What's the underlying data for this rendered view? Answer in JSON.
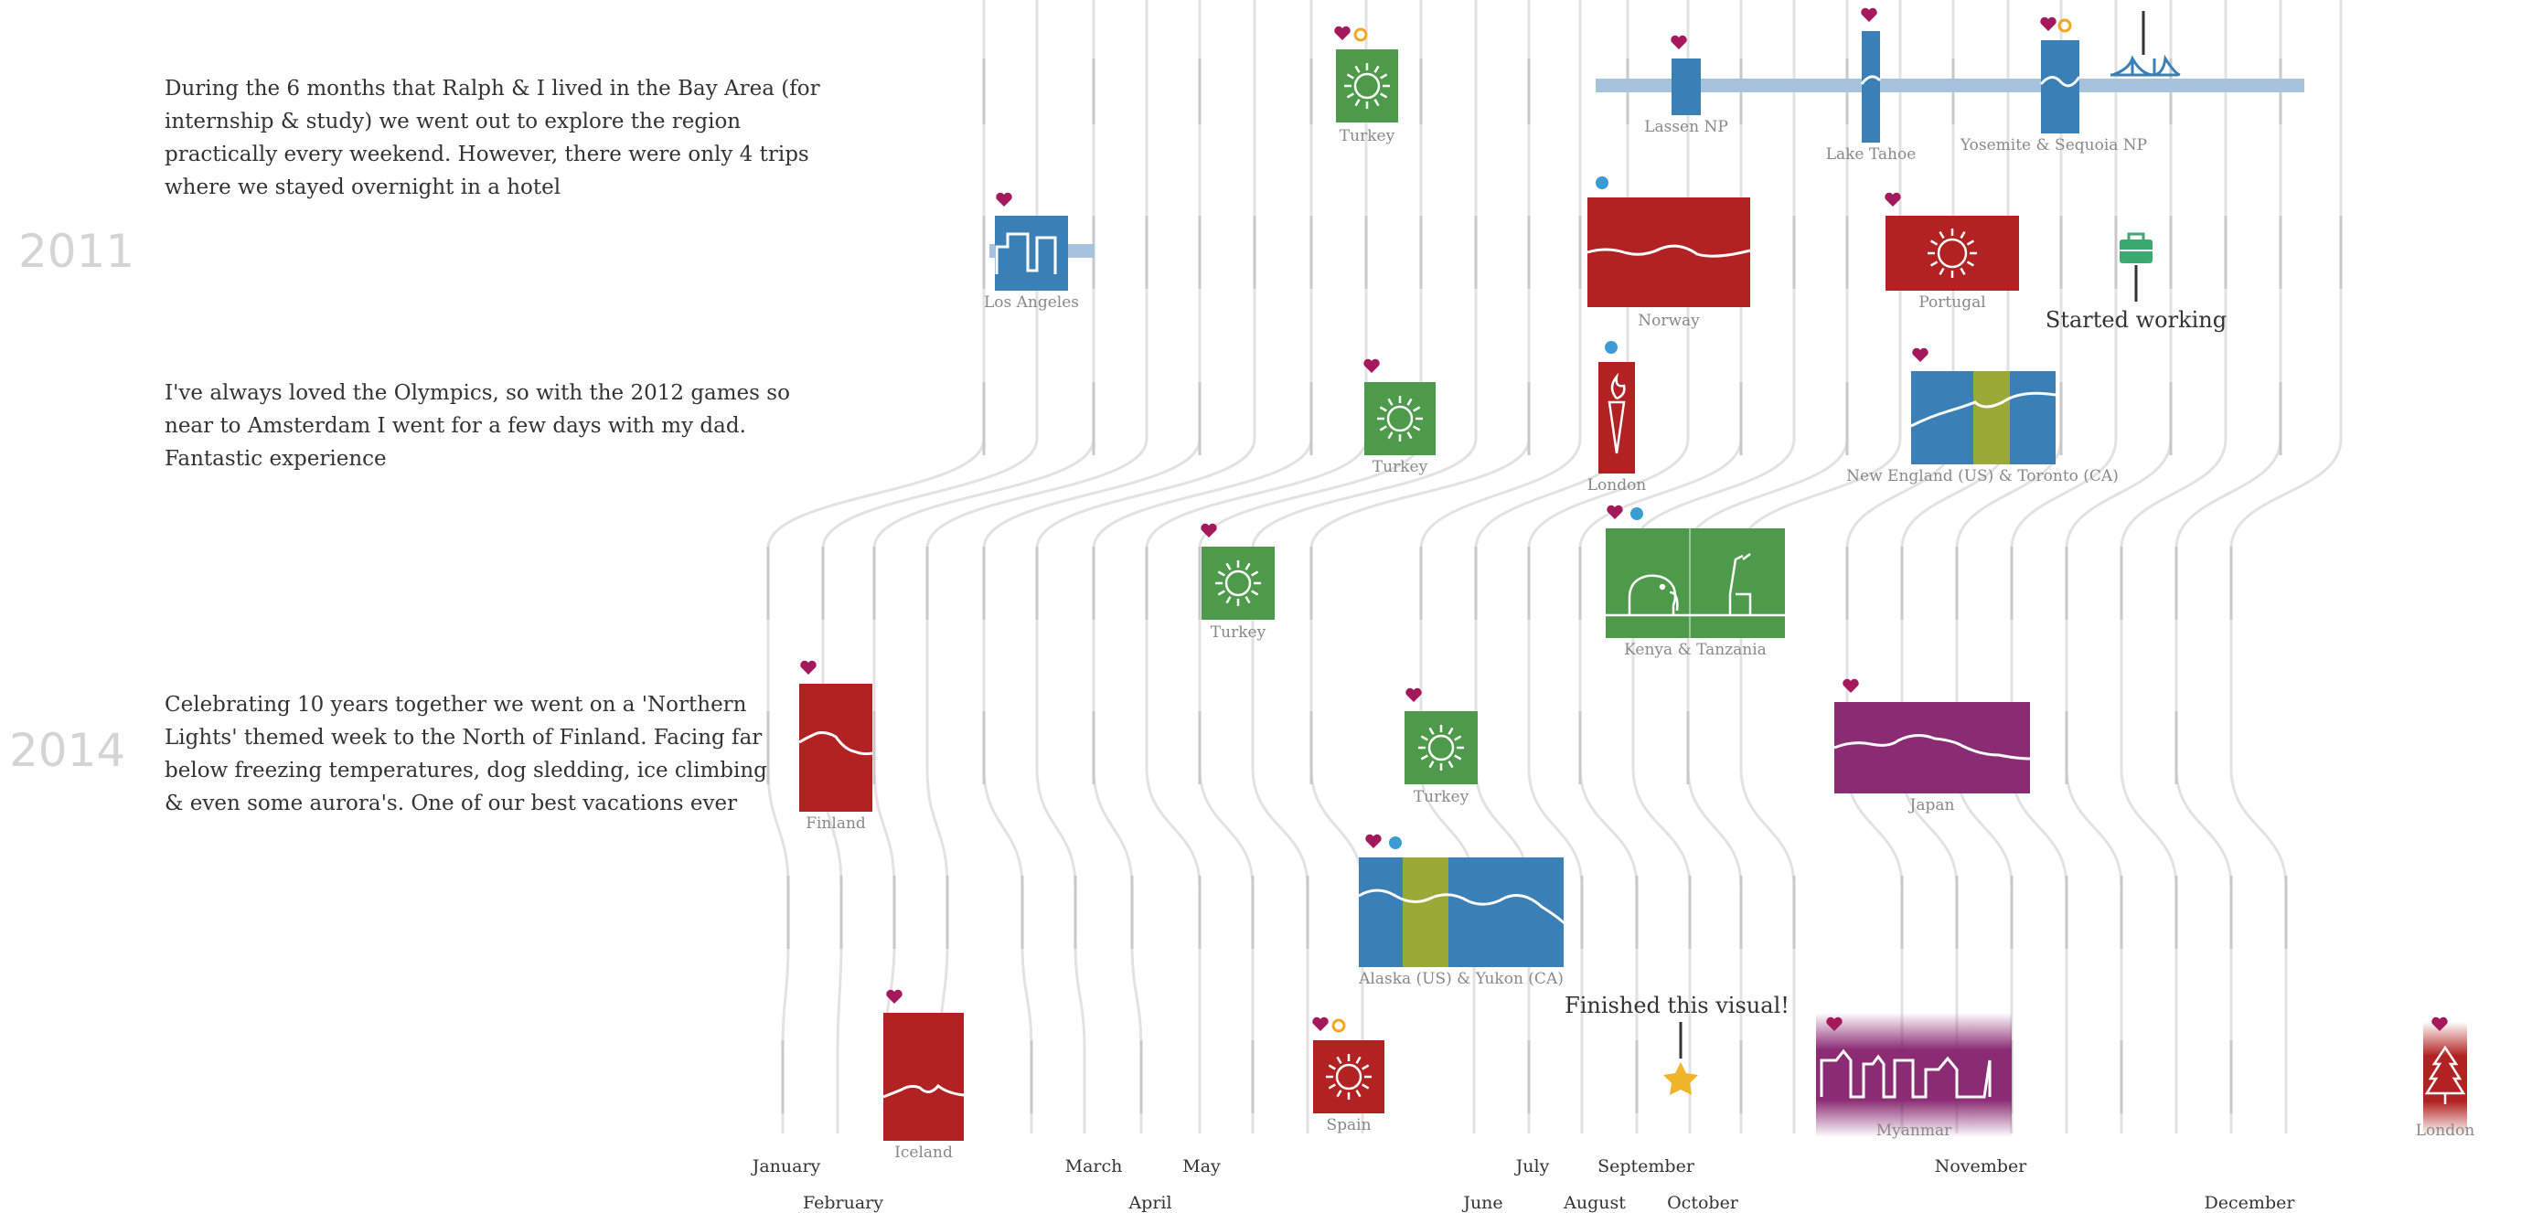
{
  "years": [
    "2011",
    "2014"
  ],
  "notes": [
    [
      "During the 6 months that Ralph & I lived in the Bay Area (for",
      "internship & study) we went out to explore the region",
      "practically every weekend. However, there were only 4 trips",
      "where we stayed overnight in a hotel"
    ],
    [
      "I've always loved the Olympics, so with the 2012 games so",
      "near to Amsterdam I went for a few days with my dad.",
      "Fantastic experience"
    ],
    [
      "Celebrating 10 years together we went on a 'Northern",
      "Lights' themed week to the North of Finland. Facing far",
      "below freezing temperatures, dog sledding, ice climbing",
      "& even some aurora's. One of our best vacations ever"
    ]
  ],
  "months_top": [
    "January",
    "March",
    "May",
    "July",
    "September",
    "November"
  ],
  "months_bottom": [
    "February",
    "April",
    "June",
    "August",
    "October",
    "December"
  ],
  "trips": {
    "turkey_1": "Turkey",
    "lassen": "Lassen NP",
    "tahoe": "Lake Tahoe",
    "yosemite": "Yosemite & Sequoia NP",
    "los_angeles": "Los Angeles",
    "norway": "Norway",
    "portugal": "Portugal",
    "turkey_2": "Turkey",
    "london_1": "London",
    "new_england": "New England (US) & Toronto (CA)",
    "turkey_3": "Turkey",
    "kenya": "Kenya & Tanzania",
    "finland": "Finland",
    "turkey_4": "Turkey",
    "japan": "Japan",
    "alaska": "Alaska (US) & Yukon (CA)",
    "iceland": "Iceland",
    "spain": "Spain",
    "myanmar": "Myanmar",
    "london_2": "London"
  },
  "callouts": {
    "started_working": "Started working",
    "finished_visual": "Finished this visual!"
  },
  "colors": {
    "heart": "#a3195b",
    "friend_dot": "#3a9bd5",
    "family_ring": "#f5a623",
    "sun_green": "#4c9a4a",
    "cold_red": "#b22222",
    "bay_blue": "#3a7fb5",
    "bay_band": "#a6c3dd",
    "japan_purple": "#8b2b74",
    "olive": "#9aaa36",
    "star": "#f0b429",
    "lines": "#e2e2e2",
    "month_tick": "#c8c8c8",
    "suitcase": "#3aaa6e"
  }
}
